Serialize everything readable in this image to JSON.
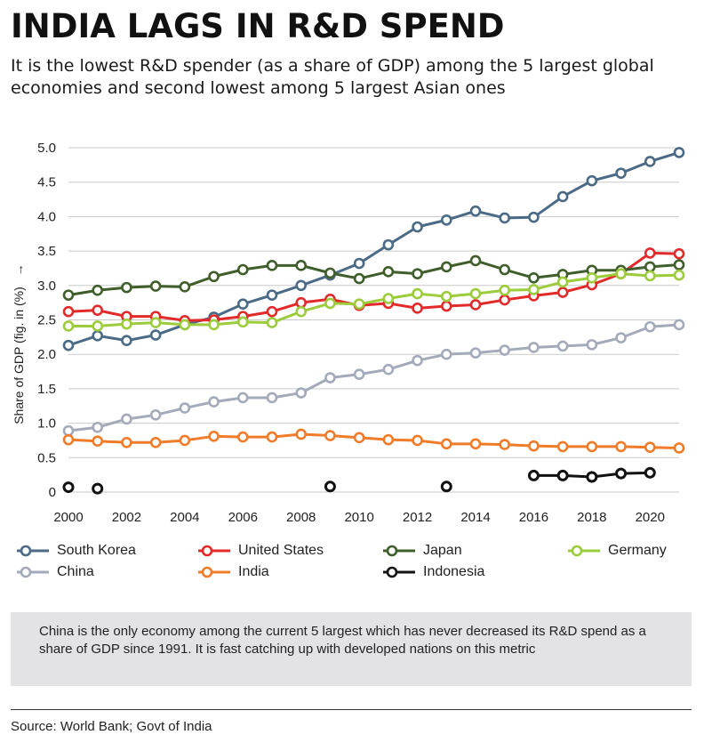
{
  "title": "INDIA LAGS IN R&D SPEND",
  "subtitle": "It is the lowest R&D spender (as a share of GDP) among the 5 largest global economies and second lowest among 5 largest Asian ones",
  "note": "China is the only economy among the current 5 largest which has never decreased its R&D spend as a share of GDP since 1991. It is fast catching up with developed nations on this metric",
  "source": "Source: World Bank; Govt of India",
  "chart_data": {
    "type": "line",
    "title": "INDIA LAGS IN R&D SPEND",
    "ylabel": "Share of GDP (fig. in (%)",
    "ylabel_arrow": "→",
    "xlabel": "",
    "xlim": [
      2000,
      2021
    ],
    "ylim": [
      0,
      5.0
    ],
    "x_ticks": [
      2000,
      2002,
      2004,
      2006,
      2008,
      2010,
      2012,
      2014,
      2016,
      2018,
      2020
    ],
    "y_ticks": [
      0,
      0.5,
      1.0,
      1.5,
      2.0,
      2.5,
      3.0,
      3.5,
      4.0,
      4.5,
      5.0
    ],
    "y_tick_labels": [
      "0",
      "0.5",
      "1.0",
      "1.5",
      "2.0",
      "2.5",
      "3.0",
      "3.5",
      "4.0",
      "4.5",
      "5.0"
    ],
    "grid": "horizontal",
    "legend_position": "bottom",
    "series": [
      {
        "name": "South Korea",
        "color": "#4a6a85",
        "x": [
          2000,
          2001,
          2002,
          2003,
          2004,
          2005,
          2006,
          2007,
          2008,
          2009,
          2010,
          2011,
          2012,
          2013,
          2014,
          2015,
          2016,
          2017,
          2018,
          2019,
          2020,
          2021
        ],
        "values": [
          2.13,
          2.27,
          2.2,
          2.28,
          2.43,
          2.54,
          2.73,
          2.86,
          3.0,
          3.15,
          3.32,
          3.59,
          3.85,
          3.95,
          4.08,
          3.98,
          3.99,
          4.29,
          4.52,
          4.63,
          4.8,
          4.93
        ]
      },
      {
        "name": "United States",
        "color": "#e32a2a",
        "x": [
          2000,
          2001,
          2002,
          2003,
          2004,
          2005,
          2006,
          2007,
          2008,
          2009,
          2010,
          2011,
          2012,
          2013,
          2014,
          2015,
          2016,
          2017,
          2018,
          2019,
          2020,
          2021
        ],
        "values": [
          2.62,
          2.64,
          2.55,
          2.55,
          2.49,
          2.5,
          2.55,
          2.62,
          2.75,
          2.8,
          2.71,
          2.74,
          2.67,
          2.7,
          2.72,
          2.79,
          2.85,
          2.9,
          3.01,
          3.17,
          3.47,
          3.46
        ]
      },
      {
        "name": "Japan",
        "color": "#3f5e2b",
        "x": [
          2000,
          2001,
          2002,
          2003,
          2004,
          2005,
          2006,
          2007,
          2008,
          2009,
          2010,
          2011,
          2012,
          2013,
          2014,
          2015,
          2016,
          2017,
          2018,
          2019,
          2020,
          2021
        ],
        "values": [
          2.86,
          2.93,
          2.97,
          2.99,
          2.98,
          3.13,
          3.23,
          3.29,
          3.29,
          3.18,
          3.1,
          3.2,
          3.17,
          3.27,
          3.36,
          3.23,
          3.11,
          3.16,
          3.22,
          3.22,
          3.27,
          3.3
        ]
      },
      {
        "name": "Germany",
        "color": "#9ccc3c",
        "x": [
          2000,
          2001,
          2002,
          2003,
          2004,
          2005,
          2006,
          2007,
          2008,
          2009,
          2010,
          2011,
          2012,
          2013,
          2014,
          2015,
          2016,
          2017,
          2018,
          2019,
          2020,
          2021
        ],
        "values": [
          2.41,
          2.41,
          2.44,
          2.46,
          2.43,
          2.43,
          2.47,
          2.46,
          2.62,
          2.74,
          2.73,
          2.81,
          2.88,
          2.84,
          2.88,
          2.93,
          2.94,
          3.05,
          3.11,
          3.17,
          3.14,
          3.15
        ]
      },
      {
        "name": "China",
        "color": "#a3aab9",
        "x": [
          2000,
          2001,
          2002,
          2003,
          2004,
          2005,
          2006,
          2007,
          2008,
          2009,
          2010,
          2011,
          2012,
          2013,
          2014,
          2015,
          2016,
          2017,
          2018,
          2019,
          2020,
          2021
        ],
        "values": [
          0.89,
          0.94,
          1.06,
          1.12,
          1.22,
          1.31,
          1.37,
          1.37,
          1.44,
          1.66,
          1.71,
          1.78,
          1.91,
          2.0,
          2.02,
          2.06,
          2.1,
          2.12,
          2.14,
          2.24,
          2.4,
          2.43
        ]
      },
      {
        "name": "India",
        "color": "#f07c2a",
        "x": [
          2000,
          2001,
          2002,
          2003,
          2004,
          2005,
          2006,
          2007,
          2008,
          2009,
          2010,
          2011,
          2012,
          2013,
          2014,
          2015,
          2016,
          2017,
          2018,
          2019,
          2020,
          2021
        ],
        "values": [
          0.76,
          0.74,
          0.72,
          0.72,
          0.75,
          0.81,
          0.8,
          0.8,
          0.84,
          0.82,
          0.79,
          0.76,
          0.75,
          0.7,
          0.7,
          0.69,
          0.67,
          0.66,
          0.66,
          0.66,
          0.65,
          0.64
        ]
      },
      {
        "name": "Indonesia",
        "color": "#111111",
        "x": [
          2000,
          2001,
          2009,
          2013,
          2016,
          2017,
          2018,
          2019,
          2020
        ],
        "values": [
          0.07,
          0.05,
          0.08,
          0.08,
          0.24,
          0.24,
          0.22,
          0.27,
          0.28
        ]
      }
    ]
  },
  "colors": {
    "note_background": "#e3e3e6",
    "grid": "#c9c9c9"
  }
}
